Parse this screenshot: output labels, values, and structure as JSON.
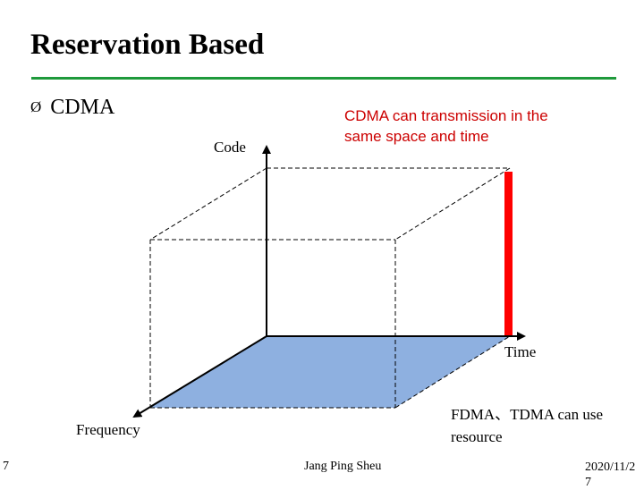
{
  "slide": {
    "title": "Reservation Based",
    "bullet": "CDMA",
    "bullet_marker": "Ø"
  },
  "diagram": {
    "axis_labels": {
      "code": "Code",
      "time": "Time",
      "frequency": "Frequency"
    },
    "notes": {
      "cdma_line1": "CDMA can transmission in the",
      "cdma_line2": "same space and time",
      "fdma_line1": "FDMA、TDMA  can use",
      "fdma_line2": "resource"
    },
    "colors": {
      "floor_plane": "#8eb0e0",
      "code_bar": "#ff0000",
      "title_rule": "#1f9a3b",
      "note_text": "#cc0000"
    }
  },
  "footer": {
    "page_number": "7",
    "author": "Jang Ping Sheu",
    "date": "2020/11/27"
  }
}
